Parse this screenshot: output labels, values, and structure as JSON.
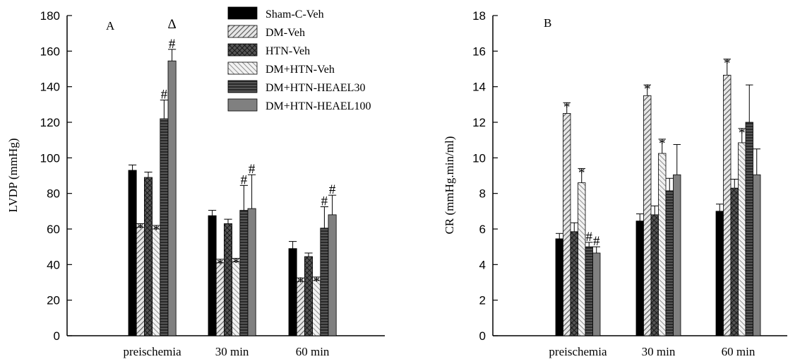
{
  "chart_data": [
    {
      "type": "bar",
      "panel_label": "A",
      "ylabel": "LVDP (mmHg)",
      "xlabel": "",
      "ylim": [
        0,
        180
      ],
      "yticks": [
        0,
        20,
        40,
        60,
        80,
        100,
        120,
        140,
        160,
        180
      ],
      "categories": [
        "preischemia",
        "30 min",
        "60 min"
      ],
      "series": [
        {
          "name": "Sham-C-Veh",
          "pattern": "solid-black",
          "values": [
            93,
            67.5,
            49
          ],
          "errors": [
            3,
            3,
            4
          ],
          "marks": [
            "",
            "",
            ""
          ]
        },
        {
          "name": "DM-Veh",
          "pattern": "hatch-diag-gray",
          "values": [
            61,
            41,
            30.5
          ],
          "errors": [
            2,
            2,
            2
          ],
          "marks": [
            "*",
            "*",
            "*"
          ]
        },
        {
          "name": "HTN-Veh",
          "pattern": "crosshatch-dark",
          "values": [
            89,
            63,
            44.5
          ],
          "errors": [
            3,
            2.5,
            2
          ],
          "marks": [
            "",
            "",
            ""
          ]
        },
        {
          "name": "DM+HTN-Veh",
          "pattern": "hatch-diag-light",
          "values": [
            60,
            41.5,
            31
          ],
          "errors": [
            2,
            2,
            2
          ],
          "marks": [
            "*",
            "*",
            "*"
          ]
        },
        {
          "name": "DM+HTN-HEAEL30",
          "pattern": "horiz-dark",
          "values": [
            122,
            70.5,
            60.5
          ],
          "errors": [
            10.5,
            14,
            12
          ],
          "marks": [
            "#",
            "#",
            "#"
          ]
        },
        {
          "name": "DM+HTN-HEAEL100",
          "pattern": "solid-gray",
          "values": [
            154.5,
            71.5,
            68
          ],
          "errors": [
            6.5,
            19,
            11
          ],
          "marks": [
            "Δ#",
            "#",
            "#"
          ]
        }
      ],
      "legend_placement": "top-right",
      "grid": false
    },
    {
      "type": "bar",
      "panel_label": "B",
      "ylabel": "CR (mmHg.min/ml)",
      "xlabel": "",
      "ylim": [
        0,
        18
      ],
      "yticks": [
        0,
        2,
        4,
        6,
        8,
        10,
        12,
        14,
        16,
        18
      ],
      "categories": [
        "preischemia",
        "30 min",
        "60 min"
      ],
      "series": [
        {
          "name": "Sham-C-Veh",
          "pattern": "solid-black",
          "values": [
            5.45,
            6.45,
            7.0
          ],
          "errors": [
            0.3,
            0.4,
            0.4
          ],
          "marks": [
            "",
            "",
            ""
          ]
        },
        {
          "name": "DM-Veh",
          "pattern": "hatch-diag-gray",
          "values": [
            12.5,
            13.5,
            14.65
          ],
          "errors": [
            0.6,
            0.6,
            0.9
          ],
          "marks": [
            "*",
            "*",
            "*"
          ]
        },
        {
          "name": "HTN-Veh",
          "pattern": "crosshatch-dark",
          "values": [
            5.85,
            6.8,
            8.3
          ],
          "errors": [
            0.5,
            0.5,
            0.5
          ],
          "marks": [
            "",
            "",
            ""
          ]
        },
        {
          "name": "DM+HTN-Veh",
          "pattern": "hatch-diag-light",
          "values": [
            8.6,
            10.25,
            10.85
          ],
          "errors": [
            0.8,
            0.8,
            0.8
          ],
          "marks": [
            "*",
            "*",
            "*"
          ]
        },
        {
          "name": "DM+HTN-HEAEL30",
          "pattern": "horiz-dark",
          "values": [
            5.0,
            8.15,
            12.0
          ],
          "errors": [
            0.25,
            0.7,
            2.1
          ],
          "marks": [
            "#",
            "",
            ""
          ]
        },
        {
          "name": "DM+HTN-HEAEL100",
          "pattern": "solid-gray",
          "values": [
            4.65,
            9.05,
            9.05
          ],
          "errors": [
            0.35,
            1.7,
            1.45
          ],
          "marks": [
            "#",
            "",
            ""
          ]
        }
      ],
      "legend_placement": "none",
      "grid": false
    }
  ],
  "colors": {
    "axis": "#000000",
    "black_bar": "#000000",
    "gray_bar": "#808080",
    "hatch": "#555555"
  }
}
